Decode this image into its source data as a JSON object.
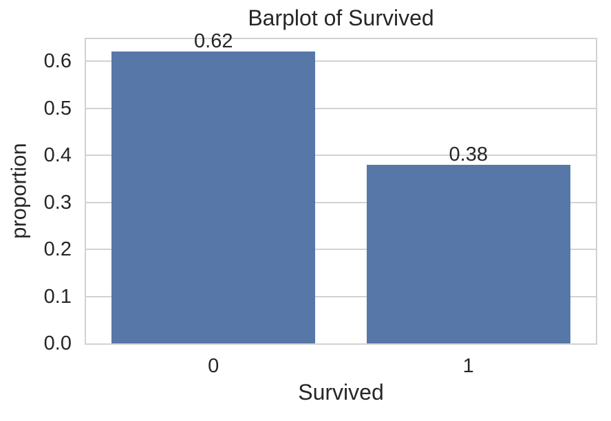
{
  "colors": {
    "bar": "#5677a8",
    "grid": "#d2d2d2",
    "spine": "#d2d2d2",
    "text": "#262626",
    "background": "#ffffff"
  },
  "chart_data": {
    "type": "bar",
    "title": "Barplot of Survived",
    "xlabel": "Survived",
    "ylabel": "proportion",
    "categories": [
      "0",
      "1"
    ],
    "values": [
      0.62,
      0.38
    ],
    "bar_labels": [
      "0.62",
      "0.38"
    ],
    "yticks": [
      0.0,
      0.1,
      0.2,
      0.3,
      0.4,
      0.5,
      0.6
    ],
    "ytick_labels": [
      "0.0",
      "0.1",
      "0.2",
      "0.3",
      "0.4",
      "0.5",
      "0.6"
    ],
    "ylim": [
      0,
      0.647
    ],
    "bar_width_fraction": 0.8,
    "grid": true,
    "legend_position": "none"
  }
}
